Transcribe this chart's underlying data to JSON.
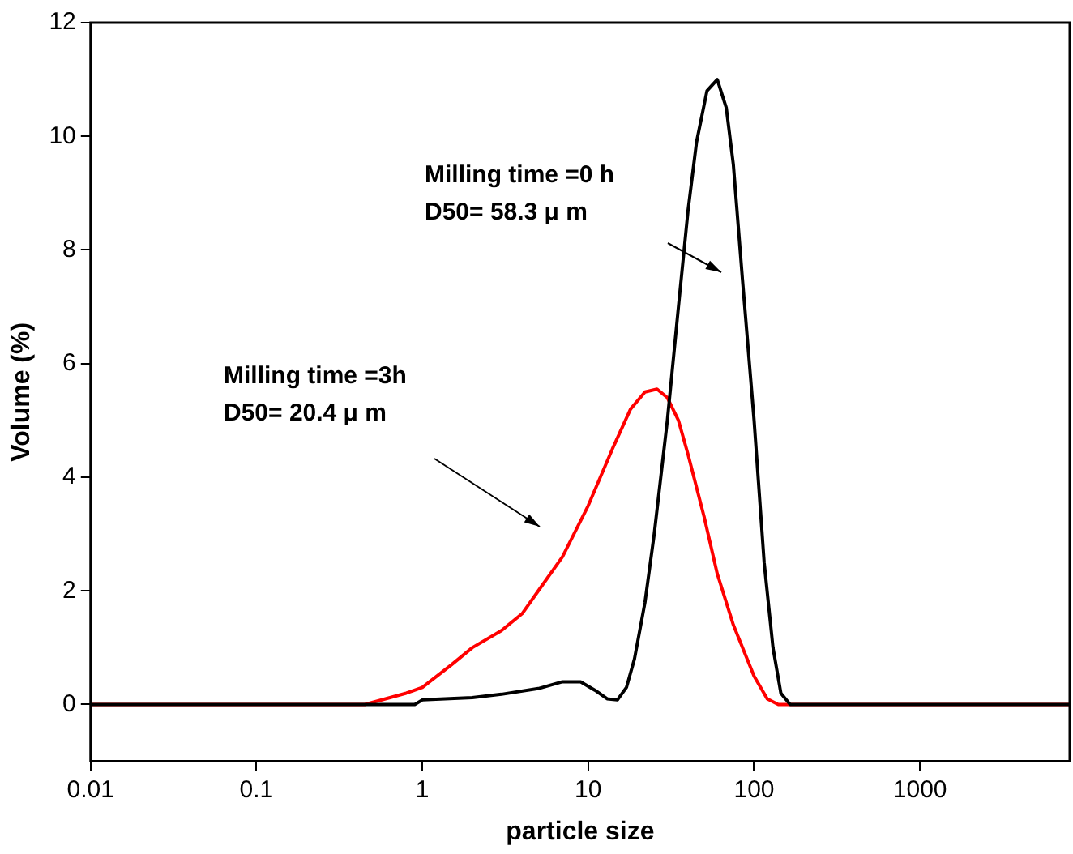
{
  "chart_data": {
    "type": "line",
    "xlabel": "particle size",
    "ylabel": "Volume (%)",
    "log": "x",
    "xlim": [
      0.01,
      8000
    ],
    "ylim": [
      -1,
      12
    ],
    "xticks": [
      0.01,
      0.1,
      1,
      10,
      100,
      1000
    ],
    "yticks": [
      0,
      2,
      4,
      6,
      8,
      10,
      12
    ],
    "grid": false,
    "legend": false,
    "series": [
      {
        "color": "#000000",
        "x": [
          0.01,
          0.9,
          1,
          2,
          3,
          5,
          7,
          9,
          11,
          13,
          15,
          17,
          19,
          22,
          25,
          30,
          35,
          40,
          45,
          52,
          60,
          68,
          75,
          85,
          100,
          115,
          130,
          145,
          165,
          8000
        ],
        "values": [
          0,
          0,
          0.08,
          0.12,
          0.18,
          0.28,
          0.4,
          0.4,
          0.25,
          0.1,
          0.08,
          0.3,
          0.8,
          1.8,
          3,
          5,
          7,
          8.7,
          9.9,
          10.8,
          11,
          10.5,
          9.5,
          7.5,
          5,
          2.5,
          1,
          0.2,
          0,
          0
        ]
      },
      {
        "color": "#ff0000",
        "x": [
          0.01,
          0.45,
          0.6,
          0.8,
          1,
          1.5,
          2,
          3,
          4,
          5,
          7,
          10,
          14,
          18,
          22,
          26,
          30,
          35,
          40,
          50,
          60,
          75,
          100,
          120,
          140,
          8000
        ],
        "values": [
          0,
          0,
          0.1,
          0.2,
          0.3,
          0.7,
          1,
          1.3,
          1.6,
          2,
          2.6,
          3.5,
          4.5,
          5.2,
          5.5,
          5.55,
          5.4,
          5,
          4.4,
          3.3,
          2.3,
          1.4,
          0.5,
          0.1,
          0,
          0
        ]
      }
    ],
    "annotations": [
      "Milling time =0 h\nD50= 58.3 μ m",
      "Milling time =3h\nD50= 20.4 μ m"
    ]
  }
}
